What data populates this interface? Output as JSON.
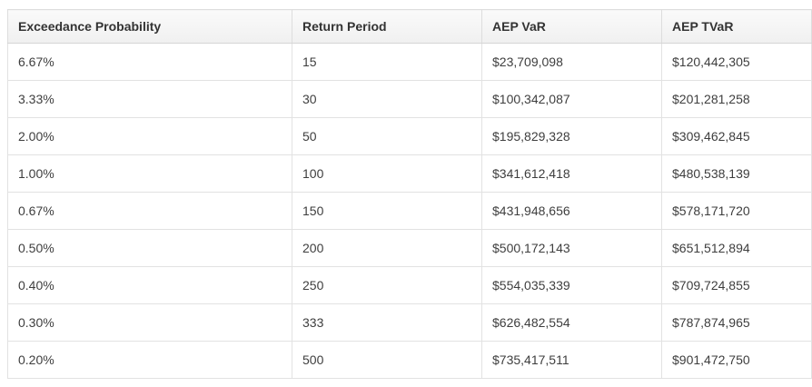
{
  "table": {
    "name": "aep-risk-metrics-table",
    "columns": [
      {
        "key": "exceedance_probability",
        "label": "Exceedance Probability"
      },
      {
        "key": "return_period",
        "label": "Return Period"
      },
      {
        "key": "aep_var",
        "label": "AEP VaR"
      },
      {
        "key": "aep_tvar",
        "label": "AEP TVaR"
      }
    ],
    "rows": [
      {
        "exceedance_probability": "6.67%",
        "return_period": "15",
        "aep_var": "$23,709,098",
        "aep_tvar": "$120,442,305"
      },
      {
        "exceedance_probability": "3.33%",
        "return_period": "30",
        "aep_var": "$100,342,087",
        "aep_tvar": "$201,281,258"
      },
      {
        "exceedance_probability": "2.00%",
        "return_period": "50",
        "aep_var": "$195,829,328",
        "aep_tvar": "$309,462,845"
      },
      {
        "exceedance_probability": "1.00%",
        "return_period": "100",
        "aep_var": "$341,612,418",
        "aep_tvar": "$480,538,139"
      },
      {
        "exceedance_probability": "0.67%",
        "return_period": "150",
        "aep_var": "$431,948,656",
        "aep_tvar": "$578,171,720"
      },
      {
        "exceedance_probability": "0.50%",
        "return_period": "200",
        "aep_var": "$500,172,143",
        "aep_tvar": "$651,512,894"
      },
      {
        "exceedance_probability": "0.40%",
        "return_period": "250",
        "aep_var": "$554,035,339",
        "aep_tvar": "$709,724,855"
      },
      {
        "exceedance_probability": "0.30%",
        "return_period": "333",
        "aep_var": "$626,482,554",
        "aep_tvar": "$787,874,965"
      },
      {
        "exceedance_probability": "0.20%",
        "return_period": "500",
        "aep_var": "$735,417,511",
        "aep_tvar": "$901,472,750"
      }
    ]
  },
  "colors": {
    "header_bg_top": "#fafafa",
    "header_bg_bottom": "#f0f0f0",
    "header_text": "#333333",
    "body_text": "#3e3e3e",
    "border": "#e2e2e2",
    "header_border": "#dddddd",
    "page_bg": "#ffffff"
  }
}
